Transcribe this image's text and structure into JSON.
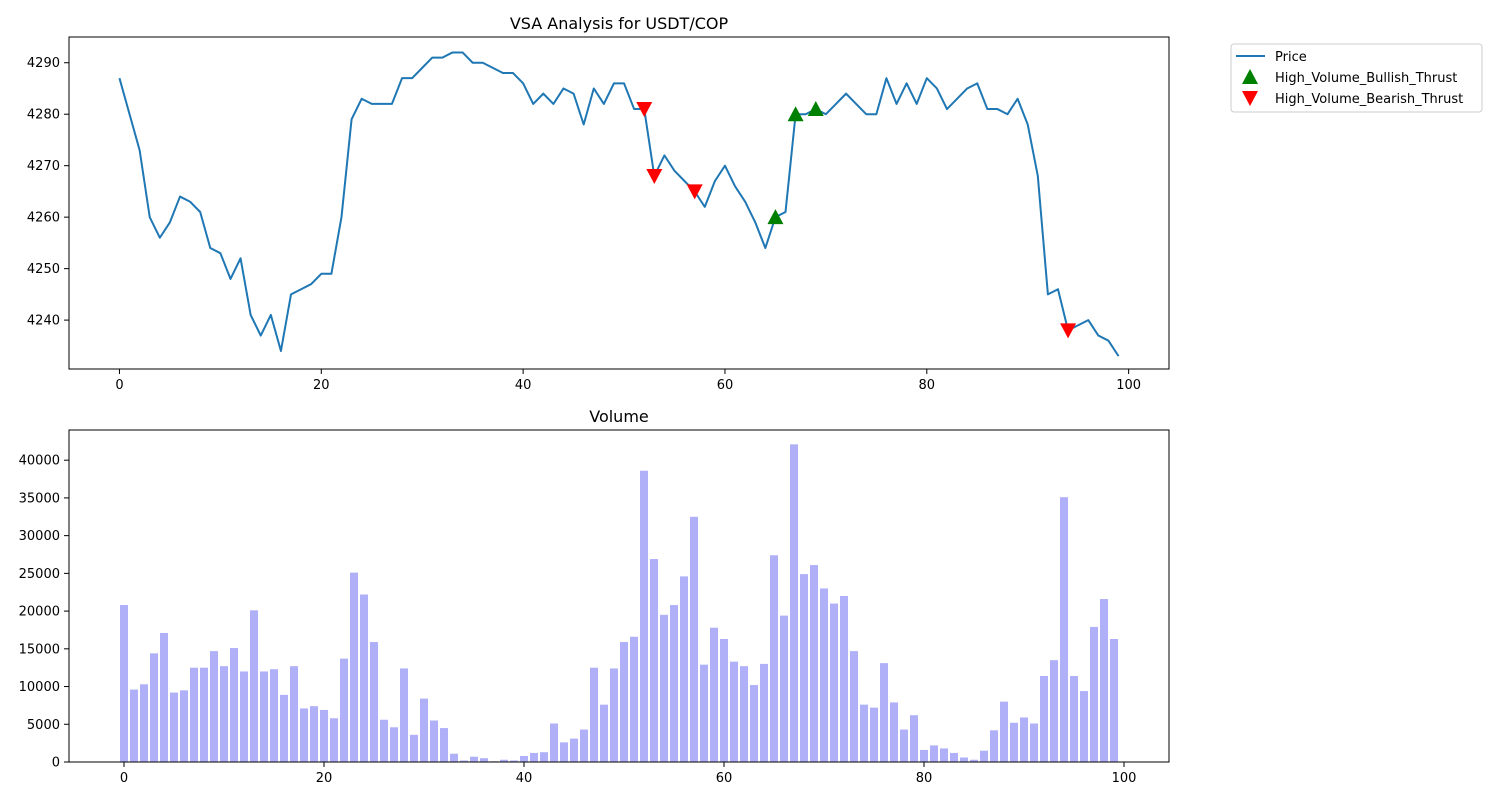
{
  "chart_data": [
    {
      "type": "line",
      "title": "VSA Analysis for USDT/COP",
      "xlabel": "",
      "ylabel": "",
      "xlim": [
        -5,
        104
      ],
      "ylim": [
        4230.5,
        4295
      ],
      "xticks": [
        0,
        20,
        40,
        60,
        80,
        100
      ],
      "yticks": [
        4240,
        4250,
        4260,
        4270,
        4280,
        4290
      ],
      "grid": false,
      "legend_placement": "outside-top-right",
      "series": [
        {
          "name": "Price",
          "color": "#1f77b4",
          "x_start": 0,
          "values": [
            4287,
            4280,
            4273,
            4260,
            4256,
            4259,
            4264,
            4263,
            4261,
            4254,
            4253,
            4248,
            4252,
            4241,
            4237,
            4241,
            4234,
            4245,
            4246,
            4247,
            4249,
            4249,
            4260,
            4279,
            4283,
            4282,
            4282,
            4282,
            4287,
            4287,
            4289,
            4291,
            4291,
            4292,
            4292,
            4290,
            4290,
            4289,
            4288,
            4288,
            4286,
            4282,
            4284,
            4282,
            4285,
            4284,
            4278,
            4285,
            4282,
            4286,
            4286,
            4281,
            4281,
            4268,
            4272,
            4269,
            4267,
            4265,
            4262,
            4267,
            4270,
            4266,
            4263,
            4259,
            4254,
            4260,
            4261,
            4280,
            4280,
            4281,
            4280,
            4282,
            4284,
            4282,
            4280,
            4280,
            4287,
            4282,
            4286,
            4282,
            4287,
            4285,
            4281,
            4283,
            4285,
            4286,
            4281,
            4281,
            4280,
            4283,
            4278,
            4268,
            4245,
            4246,
            4238,
            4239,
            4240,
            4237,
            4236,
            4233
          ]
        },
        {
          "name": "High_Volume_Bullish_Thrust",
          "type": "scatter",
          "marker": "triangle-up",
          "color": "#008000",
          "x": [
            65,
            67,
            69
          ],
          "y": [
            4260,
            4280,
            4281
          ]
        },
        {
          "name": "High_Volume_Bearish_Thrust",
          "type": "scatter",
          "marker": "triangle-down",
          "color": "#ff0000",
          "x": [
            52,
            53,
            57,
            94
          ],
          "y": [
            4281,
            4268,
            4265,
            4238
          ]
        }
      ]
    },
    {
      "type": "bar",
      "title": "Volume",
      "xlabel": "",
      "ylabel": "",
      "xlim": [
        -5.5,
        104.5
      ],
      "ylim": [
        0,
        44000
      ],
      "xticks": [
        0,
        20,
        40,
        60,
        80,
        100
      ],
      "yticks": [
        0,
        5000,
        10000,
        15000,
        20000,
        25000,
        30000,
        35000,
        40000
      ],
      "grid": false,
      "color": "#b0b0f8",
      "x_start": 0,
      "values": [
        20800,
        9600,
        10300,
        14400,
        17100,
        9200,
        9500,
        12500,
        12500,
        14700,
        12700,
        15100,
        12000,
        20100,
        12000,
        12300,
        8900,
        12700,
        7100,
        7400,
        6900,
        5800,
        13700,
        25100,
        22200,
        15900,
        5600,
        4600,
        12400,
        3600,
        8400,
        5500,
        4500,
        1100,
        200,
        700,
        500,
        100,
        300,
        200,
        800,
        1200,
        1300,
        5100,
        2600,
        3100,
        4300,
        12500,
        7600,
        12400,
        15900,
        16600,
        38600,
        26900,
        19500,
        20800,
        24600,
        32500,
        12900,
        17800,
        16300,
        13300,
        12700,
        10200,
        13000,
        27400,
        19400,
        42100,
        24900,
        26100,
        23000,
        21000,
        22000,
        14700,
        7600,
        7200,
        13100,
        7900,
        4300,
        6200,
        1600,
        2200,
        1800,
        1200,
        600,
        300,
        1500,
        4200,
        8000,
        5200,
        5900,
        5100,
        11400,
        13500,
        35100,
        11400,
        9400,
        17900,
        21600,
        16300
      ]
    }
  ]
}
